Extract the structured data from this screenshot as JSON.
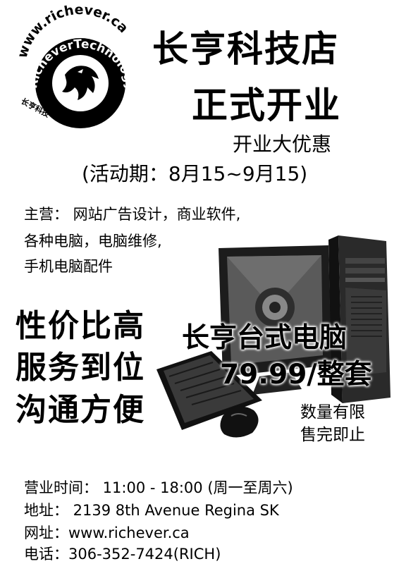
{
  "logo": {
    "arc_text": "www.richever.ca",
    "ring_text": "RicheverTechnology",
    "chinese": "长亨科技"
  },
  "headline": {
    "line1": "长亨科技店",
    "line2": "正式开业"
  },
  "promo": {
    "line1": "开业大优惠",
    "line2": "(活动期：8月15~9月15)"
  },
  "services": {
    "line1": "主营： 网站广告设计，商业软件,",
    "line2": "各种电脑，电脑维修,",
    "line3": "手机电脑配件"
  },
  "slogans": [
    "性价比高",
    "服务到位",
    "沟通方便"
  ],
  "product": {
    "name": "长亨台式电脑",
    "price": "79.99/整套",
    "stock1": "数量有限",
    "stock2": "售完即止"
  },
  "footer": {
    "hours": "营业时间： 11:00 - 18:00 (周一至周六)",
    "address": "地址： 2139 8th Avenue Regina SK",
    "website": "网址：www.richever.ca",
    "phone": "电话：306-352-7424(RICH)"
  }
}
